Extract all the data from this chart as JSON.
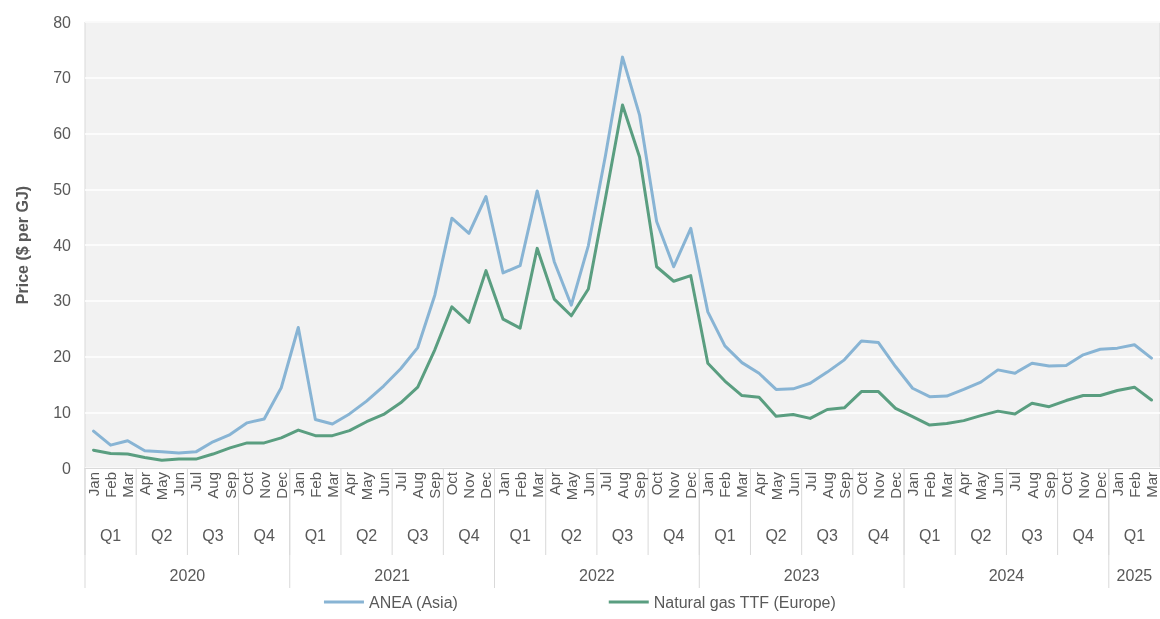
{
  "chart_data": {
    "type": "line",
    "ylabel": "Price ($ per GJ)",
    "categories": [
      "Jan",
      "Feb",
      "Mar",
      "Apr",
      "May",
      "Jun",
      "Jul",
      "Aug",
      "Sep",
      "Oct",
      "Nov",
      "Dec",
      "Jan",
      "Feb",
      "Mar",
      "Apr",
      "May",
      "Jun",
      "Jul",
      "Aug",
      "Sep",
      "Oct",
      "Nov",
      "Dec",
      "Jan",
      "Feb",
      "Mar",
      "Apr",
      "May",
      "Jun",
      "Jul",
      "Aug",
      "Sep",
      "Oct",
      "Nov",
      "Dec",
      "Jan",
      "Feb",
      "Mar",
      "Apr",
      "May",
      "Jun",
      "Jul",
      "Aug",
      "Sep",
      "Oct",
      "Nov",
      "Dec",
      "Jan",
      "Feb",
      "Mar",
      "Apr",
      "May",
      "Jun",
      "Jul",
      "Aug",
      "Sep",
      "Oct",
      "Nov",
      "Dec",
      "Jan",
      "Feb",
      "Mar"
    ],
    "series": [
      {
        "name": "ANEA (Asia)",
        "color": "#88b4d4",
        "values": [
          6.6,
          4.1,
          4.9,
          3.1,
          2.9,
          2.7,
          2.9,
          4.7,
          6.0,
          8.1,
          8.8,
          14.4,
          25.2,
          8.7,
          7.9,
          9.7,
          12.0,
          14.7,
          17.8,
          21.6,
          31.0,
          44.8,
          42.1,
          48.7,
          35.0,
          36.3,
          49.7,
          37.0,
          29.2,
          39.9,
          56.0,
          73.7,
          63.3,
          44.2,
          36.1,
          43.0,
          28.0,
          21.9,
          18.9,
          17.0,
          14.1,
          14.2,
          15.2,
          17.2,
          19.4,
          22.8,
          22.5,
          18.2,
          14.3,
          12.8,
          12.9,
          14.1,
          15.4,
          17.6,
          17.0,
          18.8,
          18.3,
          18.4,
          20.3,
          21.3,
          21.5,
          22.1,
          19.7
        ]
      },
      {
        "name": "Natural gas TTF (Europe)",
        "color": "#5a9e80",
        "values": [
          3.2,
          2.6,
          2.5,
          1.9,
          1.4,
          1.6,
          1.6,
          2.5,
          3.6,
          4.5,
          4.5,
          5.4,
          6.8,
          5.8,
          5.8,
          6.7,
          8.3,
          9.6,
          11.7,
          14.5,
          21.2,
          28.9,
          26.1,
          35.4,
          26.7,
          25.1,
          39.4,
          30.3,
          27.3,
          32.1,
          48.4,
          65.1,
          55.8,
          36.1,
          33.5,
          34.5,
          18.8,
          15.6,
          13.0,
          12.7,
          9.3,
          9.6,
          8.9,
          10.5,
          10.8,
          13.7,
          13.7,
          10.7,
          9.2,
          7.7,
          8.0,
          8.5,
          9.4,
          10.2,
          9.7,
          11.6,
          11.0,
          12.1,
          13.0,
          13.0,
          13.9,
          14.5,
          12.2
        ]
      }
    ],
    "ylim": [
      0,
      80
    ],
    "yticks": [
      0,
      10,
      20,
      30,
      40,
      50,
      60,
      70,
      80
    ],
    "grid": "y",
    "legend": "bottom",
    "marker": "none",
    "line_style": "solid",
    "annotations": [
      "Q1",
      "Q2",
      "Q3",
      "Q4",
      "Q1",
      "Q2",
      "Q3",
      "Q4",
      "Q1",
      "Q2",
      "Q3",
      "Q4",
      "Q1",
      "Q2",
      "Q3",
      "Q4",
      "Q1",
      "Q2",
      "Q3",
      "Q4",
      "Q1",
      "2020",
      "2021",
      "2022",
      "2023",
      "2024",
      "2025"
    ]
  }
}
